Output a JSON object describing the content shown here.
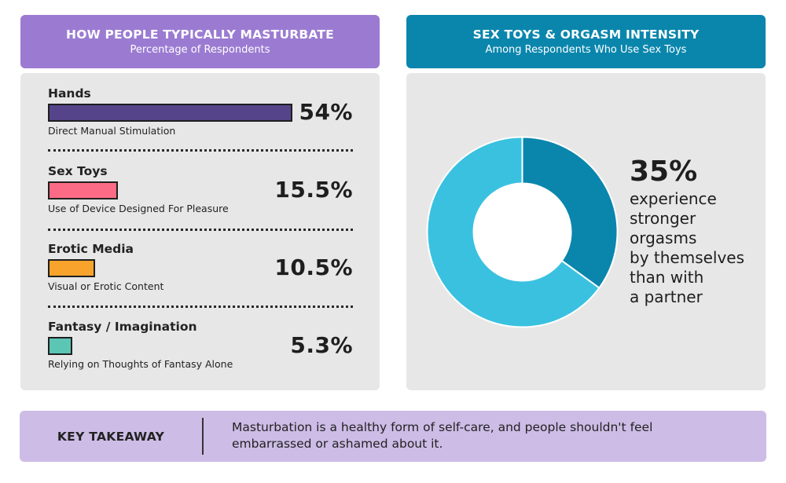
{
  "left_header": {
    "title": "HOW PEOPLE TYPICALLY MASTURBATE",
    "subtitle": "Percentage of Respondents"
  },
  "right_header": {
    "title": "SEX TOYS & ORGASM INTENSITY",
    "subtitle": "Among Respondents Who Use Sex Toys"
  },
  "chart_data": [
    {
      "type": "bar",
      "orientation": "horizontal",
      "title": "HOW PEOPLE TYPICALLY MASTURBATE",
      "subtitle": "Percentage of Respondents",
      "categories": [
        "Hands",
        "Sex Toys",
        "Erotic Media",
        "Fantasy / Imagination"
      ],
      "descriptions": [
        "Direct Manual Stimulation",
        "Use of Device Designed For Pleasure",
        "Visual or Erotic Content",
        "Relying on Thoughts of Fantasy Alone"
      ],
      "values": [
        54,
        15.5,
        10.5,
        5.3
      ],
      "value_labels": [
        "54%",
        "15.5%",
        "10.5%",
        "5.3%"
      ],
      "colors": [
        "#55448a",
        "#fb6b86",
        "#f8a42c",
        "#5bc6b4"
      ],
      "unit": "%"
    },
    {
      "type": "pie",
      "variant": "donut",
      "title": "SEX TOYS & ORGASM INTENSITY",
      "subtitle": "Among Respondents Who Use Sex Toys",
      "values": [
        35,
        65
      ],
      "colors": [
        "#0a86ad",
        "#3ac1e0"
      ],
      "highlight_value": "35%",
      "highlight_text": "experience stronger orgasms by themselves than with a partner",
      "highlight_lines": [
        "experience",
        "stronger",
        "orgasms",
        "by themselves",
        "than with",
        "a partner"
      ]
    }
  ],
  "takeaway": {
    "label": "KEY TAKEAWAY",
    "text": "Masturbation is a healthy form of self-care, and people shouldn't feel embarrassed or ashamed about it."
  }
}
